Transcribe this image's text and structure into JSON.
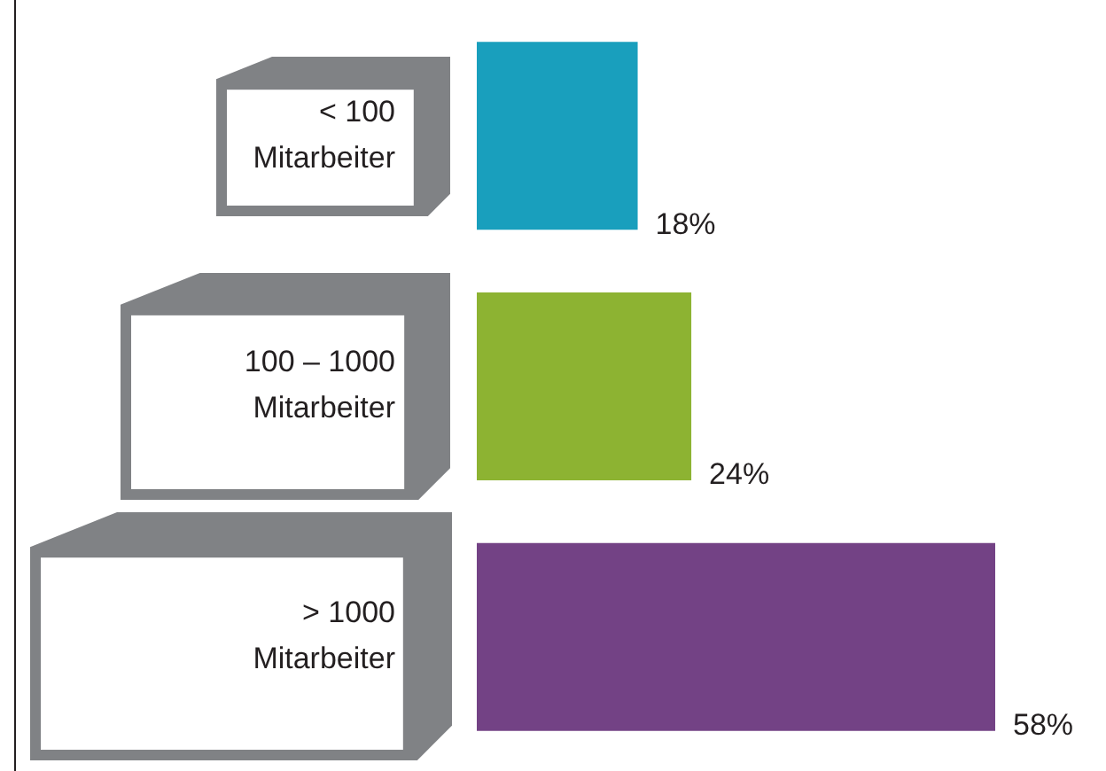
{
  "chart_data": {
    "type": "bar",
    "orientation": "horizontal",
    "categories": [
      "< 100\nMitarbeiter",
      "100 – 1000\nMitarbeiter",
      "> 1000\nMitarbeiter"
    ],
    "values": [
      18,
      24,
      58
    ],
    "colors": [
      "#199fbd",
      "#8db332",
      "#734285"
    ],
    "value_labels": [
      "18%",
      "24%",
      "58%"
    ]
  }
}
